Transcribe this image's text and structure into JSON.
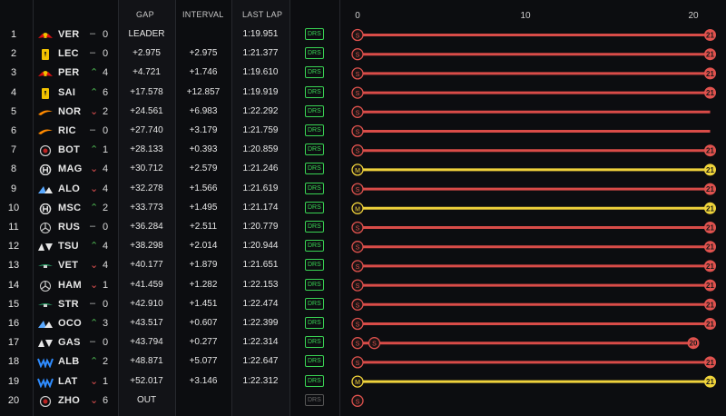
{
  "header": {
    "gap": "GAP",
    "interval": "INTERVAL",
    "last_lap": "LAST LAP"
  },
  "axis": {
    "ticks": [
      "0",
      "10",
      "20"
    ]
  },
  "drs_label": "DRS",
  "rows": [
    {
      "pos": "1",
      "code": "VER",
      "team": "redbull",
      "arrow": "same",
      "change": "0",
      "gap": "LEADER",
      "interval": "",
      "last_lap": "1:19.951",
      "drs": "on",
      "stints": [
        {
          "tyre": "S",
          "start": 0,
          "end": 21
        }
      ],
      "end_label": "21"
    },
    {
      "pos": "2",
      "code": "LEC",
      "team": "ferrari",
      "arrow": "same",
      "change": "0",
      "gap": "+2.975",
      "interval": "+2.975",
      "last_lap": "1:21.377",
      "drs": "on",
      "stints": [
        {
          "tyre": "S",
          "start": 0,
          "end": 21
        }
      ],
      "end_label": "21"
    },
    {
      "pos": "3",
      "code": "PER",
      "team": "redbull",
      "arrow": "up",
      "change": "4",
      "gap": "+4.721",
      "interval": "+1.746",
      "last_lap": "1:19.610",
      "drs": "on",
      "stints": [
        {
          "tyre": "S",
          "start": 0,
          "end": 21
        }
      ],
      "end_label": "21"
    },
    {
      "pos": "4",
      "code": "SAI",
      "team": "ferrari",
      "arrow": "up",
      "change": "6",
      "gap": "+17.578",
      "interval": "+12.857",
      "last_lap": "1:19.919",
      "drs": "on",
      "stints": [
        {
          "tyre": "S",
          "start": 0,
          "end": 21
        }
      ],
      "end_label": "21"
    },
    {
      "pos": "5",
      "code": "NOR",
      "team": "mclaren",
      "arrow": "down",
      "change": "2",
      "gap": "+24.561",
      "interval": "+6.983",
      "last_lap": "1:22.292",
      "drs": "on",
      "stints": [
        {
          "tyre": "S",
          "start": 0,
          "end": 21
        }
      ],
      "end_label": ""
    },
    {
      "pos": "6",
      "code": "RIC",
      "team": "mclaren",
      "arrow": "same",
      "change": "0",
      "gap": "+27.740",
      "interval": "+3.179",
      "last_lap": "1:21.759",
      "drs": "on",
      "stints": [
        {
          "tyre": "S",
          "start": 0,
          "end": 21
        }
      ],
      "end_label": ""
    },
    {
      "pos": "7",
      "code": "BOT",
      "team": "alfa",
      "arrow": "up",
      "change": "1",
      "gap": "+28.133",
      "interval": "+0.393",
      "last_lap": "1:20.859",
      "drs": "on",
      "stints": [
        {
          "tyre": "S",
          "start": 0,
          "end": 21
        }
      ],
      "end_label": "21"
    },
    {
      "pos": "8",
      "code": "MAG",
      "team": "haas",
      "arrow": "down",
      "change": "4",
      "gap": "+30.712",
      "interval": "+2.579",
      "last_lap": "1:21.246",
      "drs": "on",
      "stints": [
        {
          "tyre": "M",
          "start": 0,
          "end": 21
        }
      ],
      "end_label": "21"
    },
    {
      "pos": "9",
      "code": "ALO",
      "team": "alpine",
      "arrow": "down",
      "change": "4",
      "gap": "+32.278",
      "interval": "+1.566",
      "last_lap": "1:21.619",
      "drs": "on",
      "stints": [
        {
          "tyre": "S",
          "start": 0,
          "end": 21
        }
      ],
      "end_label": "21"
    },
    {
      "pos": "10",
      "code": "MSC",
      "team": "haas",
      "arrow": "up",
      "change": "2",
      "gap": "+33.773",
      "interval": "+1.495",
      "last_lap": "1:21.174",
      "drs": "on",
      "stints": [
        {
          "tyre": "M",
          "start": 0,
          "end": 21
        }
      ],
      "end_label": "21"
    },
    {
      "pos": "11",
      "code": "RUS",
      "team": "mercedes",
      "arrow": "same",
      "change": "0",
      "gap": "+36.284",
      "interval": "+2.511",
      "last_lap": "1:20.779",
      "drs": "on",
      "stints": [
        {
          "tyre": "S",
          "start": 0,
          "end": 21
        }
      ],
      "end_label": "21"
    },
    {
      "pos": "12",
      "code": "TSU",
      "team": "alphatauri",
      "arrow": "up",
      "change": "4",
      "gap": "+38.298",
      "interval": "+2.014",
      "last_lap": "1:20.944",
      "drs": "on",
      "stints": [
        {
          "tyre": "S",
          "start": 0,
          "end": 21
        }
      ],
      "end_label": "21"
    },
    {
      "pos": "13",
      "code": "VET",
      "team": "astonmartin",
      "arrow": "down",
      "change": "4",
      "gap": "+40.177",
      "interval": "+1.879",
      "last_lap": "1:21.651",
      "drs": "on",
      "stints": [
        {
          "tyre": "S",
          "start": 0,
          "end": 21
        }
      ],
      "end_label": "21"
    },
    {
      "pos": "14",
      "code": "HAM",
      "team": "mercedes",
      "arrow": "down",
      "change": "1",
      "gap": "+41.459",
      "interval": "+1.282",
      "last_lap": "1:22.153",
      "drs": "on",
      "stints": [
        {
          "tyre": "S",
          "start": 0,
          "end": 21
        }
      ],
      "end_label": "21"
    },
    {
      "pos": "15",
      "code": "STR",
      "team": "astonmartin",
      "arrow": "same",
      "change": "0",
      "gap": "+42.910",
      "interval": "+1.451",
      "last_lap": "1:22.474",
      "drs": "on",
      "stints": [
        {
          "tyre": "S",
          "start": 0,
          "end": 21
        }
      ],
      "end_label": "21"
    },
    {
      "pos": "16",
      "code": "OCO",
      "team": "alpine",
      "arrow": "up",
      "change": "3",
      "gap": "+43.517",
      "interval": "+0.607",
      "last_lap": "1:22.399",
      "drs": "on",
      "stints": [
        {
          "tyre": "S",
          "start": 0,
          "end": 21
        }
      ],
      "end_label": "21"
    },
    {
      "pos": "17",
      "code": "GAS",
      "team": "alphatauri",
      "arrow": "same",
      "change": "0",
      "gap": "+43.794",
      "interval": "+0.277",
      "last_lap": "1:22.314",
      "drs": "on",
      "stints": [
        {
          "tyre": "S",
          "start": 0,
          "end": 1
        },
        {
          "tyre": "S",
          "start": 1,
          "end": 20
        }
      ],
      "end_label": "20"
    },
    {
      "pos": "18",
      "code": "ALB",
      "team": "williams",
      "arrow": "up",
      "change": "2",
      "gap": "+48.871",
      "interval": "+5.077",
      "last_lap": "1:22.647",
      "drs": "on",
      "stints": [
        {
          "tyre": "S",
          "start": 0,
          "end": 21
        }
      ],
      "end_label": "21"
    },
    {
      "pos": "19",
      "code": "LAT",
      "team": "williams",
      "arrow": "down",
      "change": "1",
      "gap": "+52.017",
      "interval": "+3.146",
      "last_lap": "1:22.312",
      "drs": "on",
      "stints": [
        {
          "tyre": "M",
          "start": 0,
          "end": 21
        }
      ],
      "end_label": "21"
    },
    {
      "pos": "20",
      "code": "ZHO",
      "team": "alfa",
      "arrow": "down",
      "change": "6",
      "gap": "OUT",
      "interval": "",
      "last_lap": "",
      "drs": "off",
      "stints": [
        {
          "tyre": "S",
          "start": 0,
          "end": 0
        }
      ],
      "end_label": ""
    }
  ],
  "colors": {
    "soft": "#e0524e",
    "medium": "#f0d43a",
    "soft_bar": "#d94c48",
    "medium_bar": "#efd23c",
    "drs": "#39d353"
  }
}
